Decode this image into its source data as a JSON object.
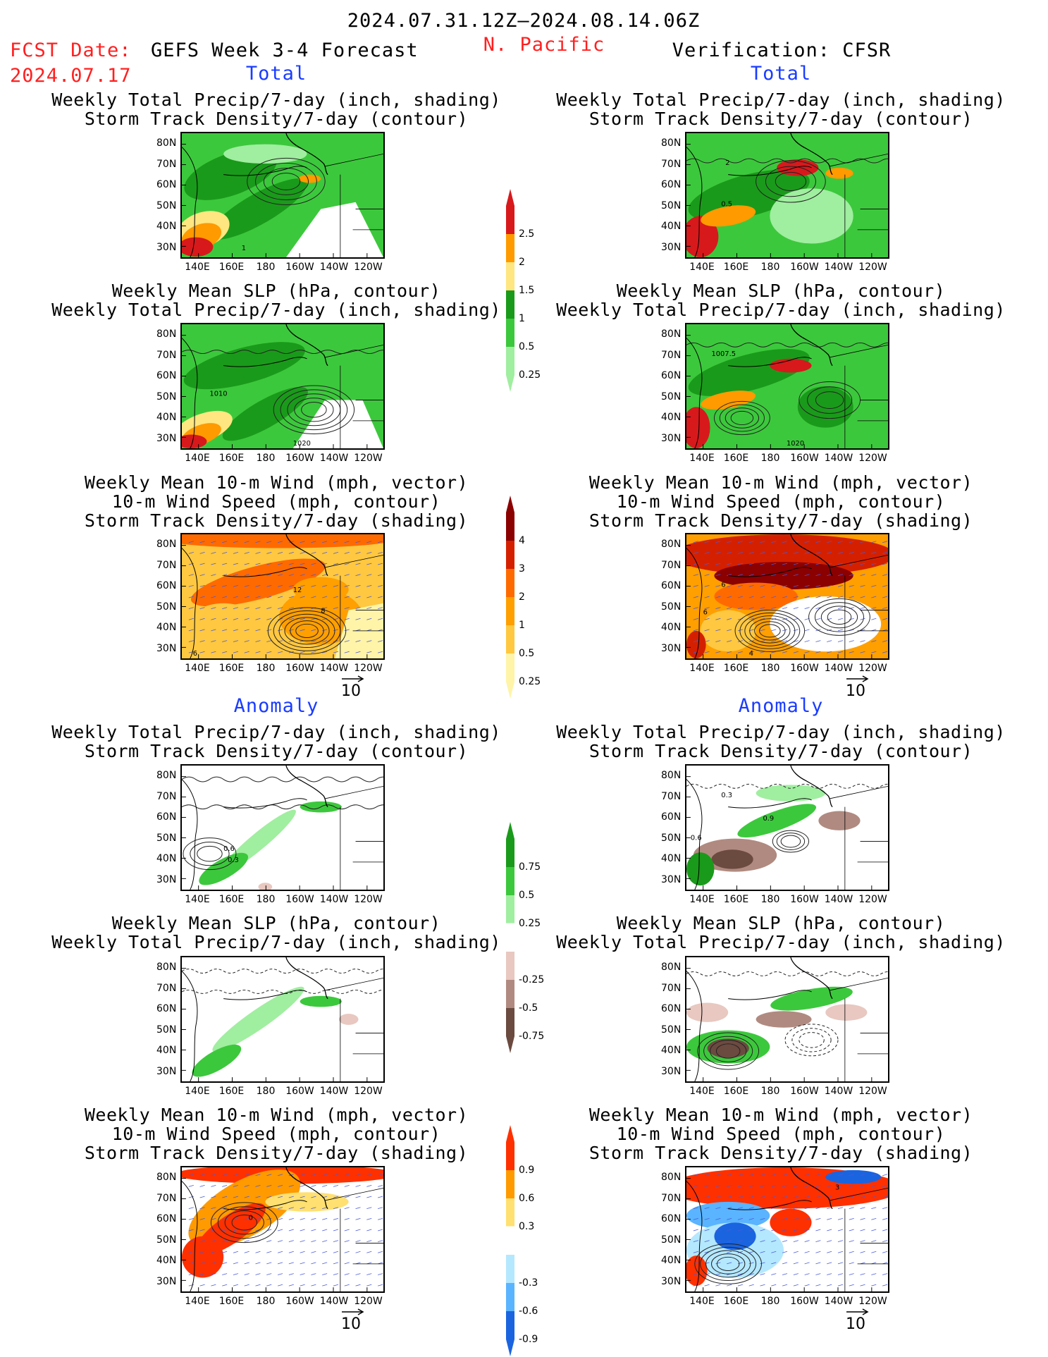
{
  "header": {
    "period": "2024.07.31.12Z–2024.08.14.06Z",
    "fcst_label": "FCST Date:",
    "fcst_date": "2024.07.17",
    "model": "GEFS Week 3-4 Forecast",
    "region": "N. Pacific",
    "verification": "Verification: CFSR"
  },
  "sections": {
    "total": "Total",
    "anomaly": "Anomaly"
  },
  "titles": {
    "precip_track": [
      "Weekly Total Precip/7-day (inch, shading)",
      "Storm Track Density/7-day (contour)"
    ],
    "slp_precip": [
      "Weekly Mean SLP (hPa, contour)",
      "Weekly Total Precip/7-day (inch, shading)"
    ],
    "wind": [
      "Weekly Mean 10-m Wind (mph, vector)",
      "10-m Wind Speed (mph, contour)",
      "Storm Track Density/7-day (shading)"
    ]
  },
  "axes": {
    "lat": [
      "80N",
      "70N",
      "60N",
      "50N",
      "40N",
      "30N"
    ],
    "lon": [
      "140E",
      "160E",
      "180",
      "160W",
      "140W",
      "120W"
    ]
  },
  "vector_ref": "10",
  "colorbars": [
    {
      "id": "precip_total",
      "labels": [
        "2.5",
        "2",
        "1.5",
        "1",
        "0.5",
        "0.25"
      ],
      "colors": [
        "#d7191c",
        "#ff9a00",
        "#ffe680",
        "#1a9a1a",
        "#3cc83c",
        "#a0eea0"
      ]
    },
    {
      "id": "track_total",
      "labels": [
        "4",
        "3",
        "2",
        "1",
        "0.5",
        "0.25"
      ],
      "colors": [
        "#8b0000",
        "#d42000",
        "#ff6a00",
        "#ff9f00",
        "#ffc840",
        "#fff4a8"
      ]
    },
    {
      "id": "precip_anom",
      "labels": [
        "0.75",
        "0.5",
        "0.25",
        "-0.25",
        "-0.5",
        "-0.75"
      ],
      "colors": [
        "#1a9a1a",
        "#3cc83c",
        "#a0eea0",
        "#ffffff",
        "#e8c8c0",
        "#b08a80",
        "#6b4a40"
      ]
    },
    {
      "id": "track_anom",
      "labels": [
        "0.9",
        "0.6",
        "0.3",
        "-0.3",
        "-0.6",
        "-0.9"
      ],
      "colors": [
        "#ff3000",
        "#ff9a00",
        "#ffe070",
        "#ffffff",
        "#b4e8ff",
        "#5ab4ff",
        "#1a64e0"
      ]
    }
  ],
  "contour_labels": {
    "p1L": "1",
    "p1R_a": "2",
    "p1R_b": "0.5",
    "p2L_a": "1010",
    "p2L_b": "1020",
    "p2R_a": "1007.5",
    "p2R_b": "1020",
    "p3L_a": "12",
    "p3L_b": "8",
    "p3L_c": "6",
    "p3R_a": "6",
    "p3R_b": "6",
    "p3R_c": "4",
    "p4L_a": "0.6",
    "p4L_b": "0.3",
    "p4R_a": "0.3",
    "p4R_b": "0.9",
    "p4R_c": "0.6",
    "p6L": "0",
    "p6R": "3"
  }
}
